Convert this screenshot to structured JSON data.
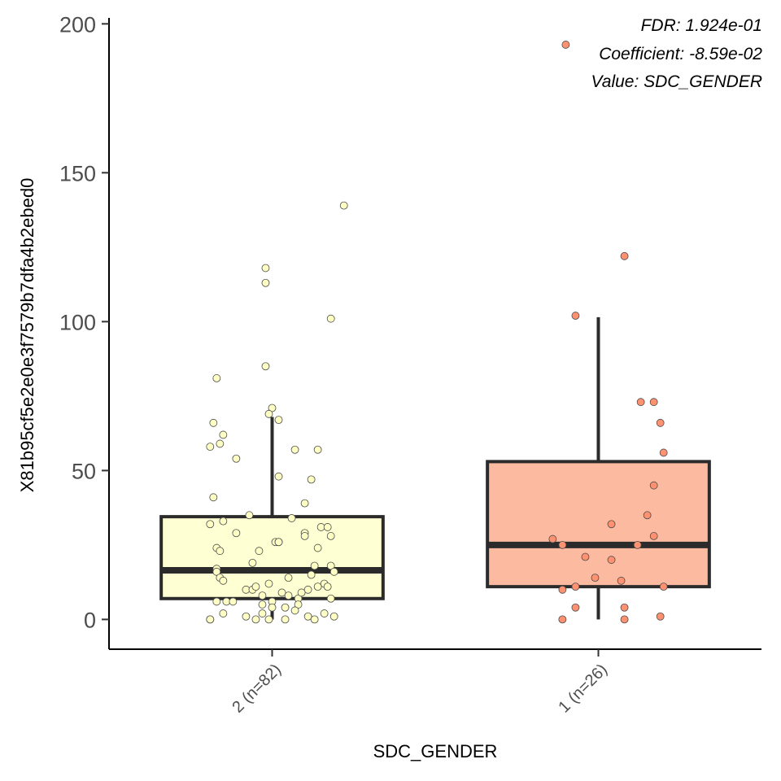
{
  "chart_data": {
    "type": "box",
    "xlabel": "SDC_GENDER",
    "ylabel": "X81b95cf5e2e0e3f7579b7dfa4b2ebed0",
    "ylim": [
      -10,
      202
    ],
    "yticks": [
      0,
      50,
      100,
      150,
      200
    ],
    "grid": false,
    "annotations": [
      "FDR: 1.924e-01",
      "Coefficient: -8.59e-02",
      "Value: SDC_GENDER"
    ],
    "categories": [
      "2 (n=82)",
      "1 (n=26)"
    ],
    "groups": [
      {
        "label": "2 (n=82)",
        "fill": "#ffffd4",
        "point_fill": "#ffffc4",
        "box": {
          "whisker_low": 0,
          "q1": 7,
          "median": 16.5,
          "q3": 34.5,
          "whisker_high": 68
        },
        "points": [
          [
            0.22,
            139
          ],
          [
            -0.02,
            118
          ],
          [
            -0.02,
            113
          ],
          [
            0.18,
            101
          ],
          [
            -0.02,
            85
          ],
          [
            -0.17,
            81
          ],
          [
            0.0,
            71
          ],
          [
            -0.01,
            69
          ],
          [
            0.02,
            67
          ],
          [
            -0.18,
            66
          ],
          [
            -0.15,
            62
          ],
          [
            -0.16,
            59
          ],
          [
            -0.19,
            58
          ],
          [
            0.07,
            57
          ],
          [
            0.14,
            57
          ],
          [
            -0.11,
            54
          ],
          [
            0.02,
            48
          ],
          [
            0.12,
            47
          ],
          [
            -0.18,
            41
          ],
          [
            0.1,
            39
          ],
          [
            -0.07,
            35
          ],
          [
            -0.15,
            33
          ],
          [
            -0.19,
            32
          ],
          [
            0.06,
            34
          ],
          [
            0.15,
            31
          ],
          [
            0.17,
            31
          ],
          [
            -0.11,
            29
          ],
          [
            0.1,
            29
          ],
          [
            0.1,
            28
          ],
          [
            0.18,
            28
          ],
          [
            0.01,
            26
          ],
          [
            0.02,
            26
          ],
          [
            0.02,
            26
          ],
          [
            -0.17,
            24
          ],
          [
            -0.16,
            23
          ],
          [
            -0.04,
            23
          ],
          [
            0.14,
            24
          ],
          [
            -0.06,
            19
          ],
          [
            0.13,
            18
          ],
          [
            0.18,
            18
          ],
          [
            -0.17,
            17
          ],
          [
            -0.17,
            16
          ],
          [
            -0.16,
            14
          ],
          [
            0.12,
            15
          ],
          [
            0.19,
            16
          ],
          [
            -0.15,
            13
          ],
          [
            -0.01,
            12
          ],
          [
            0.05,
            14
          ],
          [
            0.16,
            12
          ],
          [
            -0.08,
            10
          ],
          [
            -0.06,
            10
          ],
          [
            -0.05,
            11
          ],
          [
            0.03,
            9
          ],
          [
            0.11,
            10
          ],
          [
            0.14,
            11
          ],
          [
            0.17,
            11
          ],
          [
            -0.03,
            8
          ],
          [
            0.05,
            8
          ],
          [
            0.08,
            7
          ],
          [
            0.09,
            9
          ],
          [
            -0.17,
            6
          ],
          [
            -0.14,
            6
          ],
          [
            0.0,
            6
          ],
          [
            -0.12,
            6
          ],
          [
            -0.03,
            5
          ],
          [
            0.04,
            4
          ],
          [
            0.08,
            5
          ],
          [
            0.18,
            7
          ],
          [
            0.0,
            4
          ],
          [
            -0.15,
            2
          ],
          [
            0.07,
            3
          ],
          [
            0.11,
            1
          ],
          [
            0.16,
            2
          ],
          [
            -0.03,
            2
          ],
          [
            -0.08,
            1
          ],
          [
            0.19,
            1
          ],
          [
            -0.19,
            0
          ],
          [
            -0.19,
            0
          ],
          [
            -0.05,
            0
          ],
          [
            -0.01,
            0
          ],
          [
            0.13,
            0
          ],
          [
            0.04,
            0
          ]
        ]
      },
      {
        "label": "1 (n=26)",
        "fill": "#fcbba1",
        "point_fill": "#fc9272",
        "box": {
          "whisker_low": 0,
          "q1": 11,
          "median": 25,
          "q3": 53,
          "whisker_high": 101.5
        },
        "points": [
          [
            -0.1,
            193
          ],
          [
            0.08,
            122
          ],
          [
            -0.07,
            102
          ],
          [
            0.13,
            73
          ],
          [
            0.17,
            73
          ],
          [
            0.19,
            66
          ],
          [
            0.2,
            56
          ],
          [
            0.17,
            45
          ],
          [
            0.15,
            35
          ],
          [
            0.04,
            32
          ],
          [
            -0.14,
            27
          ],
          [
            0.17,
            28
          ],
          [
            -0.11,
            25
          ],
          [
            0.12,
            25
          ],
          [
            -0.04,
            21
          ],
          [
            0.04,
            20
          ],
          [
            -0.01,
            14
          ],
          [
            0.07,
            13
          ],
          [
            -0.11,
            10
          ],
          [
            -0.07,
            11
          ],
          [
            0.2,
            11
          ],
          [
            -0.07,
            4
          ],
          [
            0.08,
            4
          ],
          [
            0.19,
            1
          ],
          [
            -0.11,
            0
          ],
          [
            0.08,
            0
          ]
        ]
      }
    ]
  }
}
